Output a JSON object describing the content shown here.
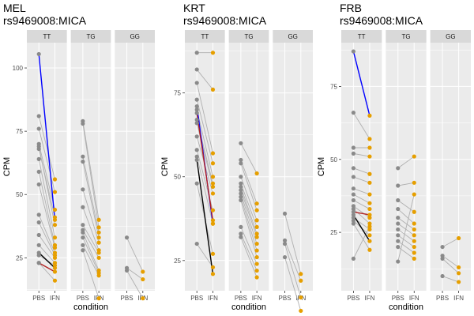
{
  "colors": {
    "panel_bg": "#ebebeb",
    "strip_bg": "#d9d9d9",
    "grid": "#ffffff",
    "pair_line": "#b0b0b0",
    "pbs_point": "#8a8a8a",
    "ifn_point": "#e69f00",
    "highlight_blue": "#0000ff",
    "highlight_red": "#b22222",
    "highlight_black": "#000000"
  },
  "chart_data": [
    {
      "type": "scatter",
      "title_line1": "MEL",
      "title_line2": "rs9469008:MICA",
      "ylabel": "CPM",
      "xlabel": "condition",
      "categories": [
        "PBS",
        "IFN"
      ],
      "yticks": [
        25,
        50,
        75,
        100
      ],
      "ylim": [
        12,
        110
      ],
      "grid": true,
      "facets": [
        {
          "genotype": "TT",
          "pairs": [
            {
              "pbs": 105.5,
              "ifn": 40,
              "highlight": "blue"
            },
            {
              "pbs": 81,
              "ifn": 56
            },
            {
              "pbs": 76,
              "ifn": 51
            },
            {
              "pbs": 70,
              "ifn": 44
            },
            {
              "pbs": 68,
              "ifn": 41
            },
            {
              "pbs": 69,
              "ifn": 38
            },
            {
              "pbs": 64,
              "ifn": 33
            },
            {
              "pbs": 59,
              "ifn": 30
            },
            {
              "pbs": 54,
              "ifn": 29
            },
            {
              "pbs": 42,
              "ifn": 27
            },
            {
              "pbs": 39,
              "ifn": 26
            },
            {
              "pbs": 34,
              "ifn": 25
            },
            {
              "pbs": 30,
              "ifn": 23
            },
            {
              "pbs": 26,
              "ifn": 22
            },
            {
              "pbs": 23,
              "ifn": 16
            },
            {
              "pbs": 27,
              "ifn": 21,
              "highlight": "black"
            },
            {
              "pbs": 23,
              "ifn": 19.5,
              "highlight": "red"
            }
          ]
        },
        {
          "genotype": "TG",
          "pairs": [
            {
              "pbs": 79,
              "ifn": 40
            },
            {
              "pbs": 78,
              "ifn": 37
            },
            {
              "pbs": 65,
              "ifn": 35
            },
            {
              "pbs": 63,
              "ifn": 33
            },
            {
              "pbs": 52,
              "ifn": 31
            },
            {
              "pbs": 45,
              "ifn": 28
            },
            {
              "pbs": 38,
              "ifn": 27
            },
            {
              "pbs": 36,
              "ifn": 25
            },
            {
              "pbs": 35,
              "ifn": 20
            },
            {
              "pbs": 33,
              "ifn": 19
            },
            {
              "pbs": 30,
              "ifn": 18
            },
            {
              "pbs": 28,
              "ifn": 9
            }
          ]
        },
        {
          "genotype": "GG",
          "pairs": [
            {
              "pbs": 33,
              "ifn": 19.5
            },
            {
              "pbs": 21,
              "ifn": 16.5
            },
            {
              "pbs": 20,
              "ifn": 9
            }
          ]
        }
      ]
    },
    {
      "type": "scatter",
      "title_line1": "KRT",
      "title_line2": "rs9469008:MICA",
      "ylabel": "CPM",
      "xlabel": "condition",
      "categories": [
        "PBS",
        "IFN"
      ],
      "yticks": [
        25,
        50,
        75
      ],
      "ylim": [
        16,
        90
      ],
      "grid": true,
      "facets": [
        {
          "genotype": "TT",
          "pairs": [
            {
              "pbs": 87,
              "ifn": 87
            },
            {
              "pbs": 82,
              "ifn": 76
            },
            {
              "pbs": 78,
              "ifn": 57
            },
            {
              "pbs": 73,
              "ifn": 54
            },
            {
              "pbs": 70,
              "ifn": 50
            },
            {
              "pbs": 67,
              "ifn": 48
            },
            {
              "pbs": 66,
              "ifn": 47
            },
            {
              "pbs": 62,
              "ifn": 45
            },
            {
              "pbs": 58,
              "ifn": 40
            },
            {
              "pbs": 56,
              "ifn": 36
            },
            {
              "pbs": 48,
              "ifn": 27
            },
            {
              "pbs": 30,
              "ifn": 23
            },
            {
              "pbs": 71,
              "ifn": 36,
              "highlight": "blue"
            },
            {
              "pbs": 69,
              "ifn": 37,
              "highlight": "red"
            },
            {
              "pbs": 55,
              "ifn": 21,
              "highlight": "black"
            }
          ]
        },
        {
          "genotype": "TG",
          "pairs": [
            {
              "pbs": 60,
              "ifn": 51
            },
            {
              "pbs": 55,
              "ifn": 42
            },
            {
              "pbs": 54,
              "ifn": 40
            },
            {
              "pbs": 50,
              "ifn": 37
            },
            {
              "pbs": 48,
              "ifn": 35
            },
            {
              "pbs": 47,
              "ifn": 33
            },
            {
              "pbs": 46,
              "ifn": 32
            },
            {
              "pbs": 45,
              "ifn": 30
            },
            {
              "pbs": 44,
              "ifn": 28
            },
            {
              "pbs": 43,
              "ifn": 26
            },
            {
              "pbs": 35,
              "ifn": 24
            },
            {
              "pbs": 33,
              "ifn": 22
            },
            {
              "pbs": 32,
              "ifn": 20
            }
          ]
        },
        {
          "genotype": "GG",
          "pairs": [
            {
              "pbs": 39,
              "ifn": 21
            },
            {
              "pbs": 31,
              "ifn": 19
            },
            {
              "pbs": 30,
              "ifn": 14
            },
            {
              "pbs": 26,
              "ifn": 10
            }
          ]
        }
      ]
    },
    {
      "type": "scatter",
      "title_line1": "FRB",
      "title_line2": "rs9469008:MICA",
      "ylabel": "CPM",
      "xlabel": "condition",
      "categories": [
        "PBS",
        "IFN"
      ],
      "yticks": [
        25,
        50,
        75
      ],
      "ylim": [
        5,
        90
      ],
      "grid": true,
      "facets": [
        {
          "genotype": "TT",
          "pairs": [
            {
              "pbs": 87,
              "ifn": 65,
              "highlight": "blue"
            },
            {
              "pbs": 66,
              "ifn": 57
            },
            {
              "pbs": 54,
              "ifn": 54
            },
            {
              "pbs": 52,
              "ifn": 51
            },
            {
              "pbs": 47,
              "ifn": 45
            },
            {
              "pbs": 44,
              "ifn": 42
            },
            {
              "pbs": 40,
              "ifn": 38
            },
            {
              "pbs": 38,
              "ifn": 35
            },
            {
              "pbs": 36,
              "ifn": 33
            },
            {
              "pbs": 34,
              "ifn": 30
            },
            {
              "pbs": 33,
              "ifn": 28
            },
            {
              "pbs": 30,
              "ifn": 26
            },
            {
              "pbs": 29,
              "ifn": 24
            },
            {
              "pbs": 28,
              "ifn": 19
            },
            {
              "pbs": 16,
              "ifn": 27
            },
            {
              "pbs": 32,
              "ifn": 31,
              "highlight": "red"
            },
            {
              "pbs": 31,
              "ifn": 22,
              "highlight": "black"
            }
          ]
        },
        {
          "genotype": "TG",
          "pairs": [
            {
              "pbs": 47,
              "ifn": 51
            },
            {
              "pbs": 41,
              "ifn": 42
            },
            {
              "pbs": 36,
              "ifn": 32
            },
            {
              "pbs": 33,
              "ifn": 28
            },
            {
              "pbs": 30,
              "ifn": 26
            },
            {
              "pbs": 28,
              "ifn": 24
            },
            {
              "pbs": 26,
              "ifn": 22
            },
            {
              "pbs": 24,
              "ifn": 20
            },
            {
              "pbs": 22,
              "ifn": 18
            },
            {
              "pbs": 20,
              "ifn": 16
            },
            {
              "pbs": 15,
              "ifn": 38
            }
          ]
        },
        {
          "genotype": "GG",
          "pairs": [
            {
              "pbs": 20,
              "ifn": 23
            },
            {
              "pbs": 17,
              "ifn": 13
            },
            {
              "pbs": 16,
              "ifn": 11
            },
            {
              "pbs": 10,
              "ifn": 8
            }
          ]
        }
      ]
    }
  ]
}
